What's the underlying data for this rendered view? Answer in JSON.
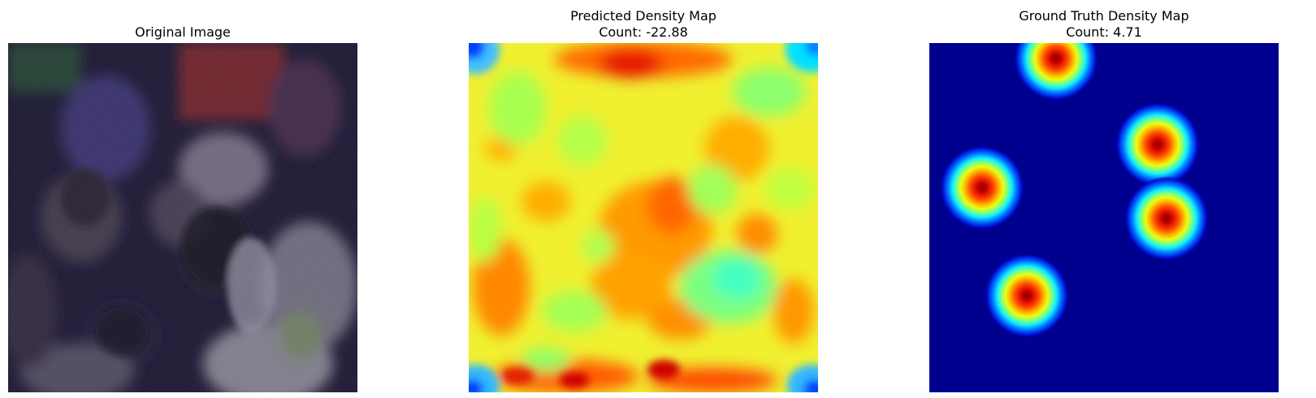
{
  "panels": [
    {
      "title": "Original Image"
    },
    {
      "title": "Predicted Density Map",
      "subtitle": "Count: -22.88"
    },
    {
      "title": "Ground Truth Density Map",
      "subtitle": "Count: 4.71"
    }
  ],
  "colors": {
    "background": "#ffffff",
    "photo_base": "#15112a",
    "jet_low": "#00007f",
    "jet_mid": "#7fff7f",
    "jet_high": "#7f0000"
  }
}
